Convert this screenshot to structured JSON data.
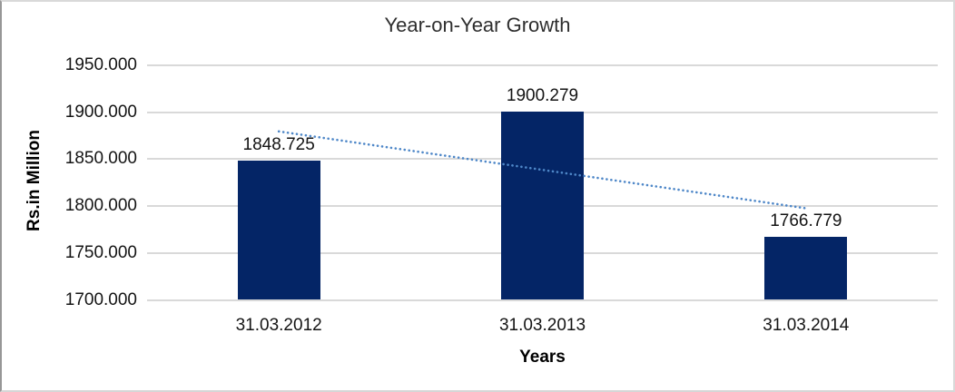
{
  "chart_data": {
    "type": "bar",
    "title": "Year-on-Year Growth",
    "xlabel": "Years",
    "ylabel": "Rs.in Million",
    "categories": [
      "31.03.2012",
      "31.03.2013",
      "31.03.2014"
    ],
    "values": [
      1848.725,
      1900.279,
      1766.779
    ],
    "data_labels": [
      "1848.725",
      "1900.279",
      "1766.779"
    ],
    "ylim": [
      1700,
      1950
    ],
    "ytick_values": [
      1700,
      1750,
      1800,
      1850,
      1900,
      1950
    ],
    "ytick_labels": [
      "1700.000",
      "1750.000",
      "1800.000",
      "1850.000",
      "1900.000",
      "1950.000"
    ],
    "grid": "horizontal",
    "legend_position": "none",
    "trendline": {
      "kind": "linear",
      "style": "dotted",
      "span": "category-centers"
    },
    "colors": {
      "bar": "#042566",
      "trendline": "#4e87c8",
      "gridline": "#d9d9d9",
      "title_text": "#2e2e2e",
      "label_text": "#141414",
      "background": "#ffffff"
    }
  }
}
